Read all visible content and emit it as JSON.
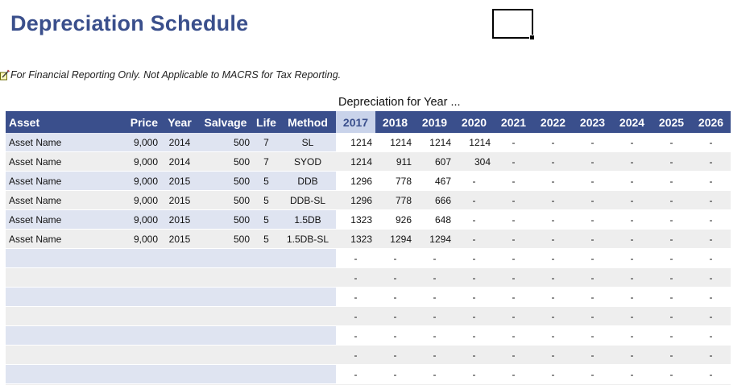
{
  "title": "Depreciation Schedule",
  "note": "For Financial Reporting Only. Not Applicable to MACRS for Tax Reporting.",
  "depreciation_label": "Depreciation for Year ...",
  "headers": {
    "asset": "Asset",
    "price": "Price",
    "year": "Year",
    "salvage": "Salvage",
    "life": "Life",
    "method": "Method",
    "years": [
      "2017",
      "2018",
      "2019",
      "2020",
      "2021",
      "2022",
      "2023",
      "2024",
      "2025",
      "2026"
    ]
  },
  "rows": [
    {
      "asset": "Asset Name",
      "price": "9,000",
      "year": "2014",
      "salvage": "500",
      "life": "7",
      "method": "SL",
      "dep": [
        "1214",
        "1214",
        "1214",
        "1214",
        "-",
        "-",
        "-",
        "-",
        "-",
        "-"
      ]
    },
    {
      "asset": "Asset Name",
      "price": "9,000",
      "year": "2014",
      "salvage": "500",
      "life": "7",
      "method": "SYOD",
      "dep": [
        "1214",
        "911",
        "607",
        "304",
        "-",
        "-",
        "-",
        "-",
        "-",
        "-"
      ]
    },
    {
      "asset": "Asset Name",
      "price": "9,000",
      "year": "2015",
      "salvage": "500",
      "life": "5",
      "method": "DDB",
      "dep": [
        "1296",
        "778",
        "467",
        "-",
        "-",
        "-",
        "-",
        "-",
        "-",
        "-"
      ]
    },
    {
      "asset": "Asset Name",
      "price": "9,000",
      "year": "2015",
      "salvage": "500",
      "life": "5",
      "method": "DDB-SL",
      "dep": [
        "1296",
        "778",
        "666",
        "-",
        "-",
        "-",
        "-",
        "-",
        "-",
        "-"
      ]
    },
    {
      "asset": "Asset Name",
      "price": "9,000",
      "year": "2015",
      "salvage": "500",
      "life": "5",
      "method": "1.5DB",
      "dep": [
        "1323",
        "926",
        "648",
        "-",
        "-",
        "-",
        "-",
        "-",
        "-",
        "-"
      ]
    },
    {
      "asset": "Asset Name",
      "price": "9,000",
      "year": "2015",
      "salvage": "500",
      "life": "5",
      "method": "1.5DB-SL",
      "dep": [
        "1323",
        "1294",
        "1294",
        "-",
        "-",
        "-",
        "-",
        "-",
        "-",
        "-"
      ]
    },
    {
      "asset": "",
      "price": "",
      "year": "",
      "salvage": "",
      "life": "",
      "method": "",
      "dep": [
        "-",
        "-",
        "-",
        "-",
        "-",
        "-",
        "-",
        "-",
        "-",
        "-"
      ]
    },
    {
      "asset": "",
      "price": "",
      "year": "",
      "salvage": "",
      "life": "",
      "method": "",
      "dep": [
        "-",
        "-",
        "-",
        "-",
        "-",
        "-",
        "-",
        "-",
        "-",
        "-"
      ]
    },
    {
      "asset": "",
      "price": "",
      "year": "",
      "salvage": "",
      "life": "",
      "method": "",
      "dep": [
        "-",
        "-",
        "-",
        "-",
        "-",
        "-",
        "-",
        "-",
        "-",
        "-"
      ]
    },
    {
      "asset": "",
      "price": "",
      "year": "",
      "salvage": "",
      "life": "",
      "method": "",
      "dep": [
        "-",
        "-",
        "-",
        "-",
        "-",
        "-",
        "-",
        "-",
        "-",
        "-"
      ]
    },
    {
      "asset": "",
      "price": "",
      "year": "",
      "salvage": "",
      "life": "",
      "method": "",
      "dep": [
        "-",
        "-",
        "-",
        "-",
        "-",
        "-",
        "-",
        "-",
        "-",
        "-"
      ]
    },
    {
      "asset": "",
      "price": "",
      "year": "",
      "salvage": "",
      "life": "",
      "method": "",
      "dep": [
        "-",
        "-",
        "-",
        "-",
        "-",
        "-",
        "-",
        "-",
        "-",
        "-"
      ]
    },
    {
      "asset": "",
      "price": "",
      "year": "",
      "salvage": "",
      "life": "",
      "method": "",
      "dep": [
        "-",
        "-",
        "-",
        "-",
        "-",
        "-",
        "-",
        "-",
        "-",
        "-"
      ]
    },
    {
      "asset": "",
      "price": "",
      "year": "",
      "salvage": "",
      "life": "",
      "method": "",
      "dep": [
        "-",
        "-",
        "-",
        "-",
        "-",
        "-",
        "-",
        "-",
        "-",
        "-"
      ]
    }
  ],
  "colors": {
    "header_bg": "#3a4f8c",
    "header_highlight_bg": "#c9d3ea",
    "title": "#3a4f8c",
    "asset_band": "#dfe4f1",
    "alt_band": "#eeeeee"
  },
  "icons": {
    "note": "note-pencil-icon"
  }
}
